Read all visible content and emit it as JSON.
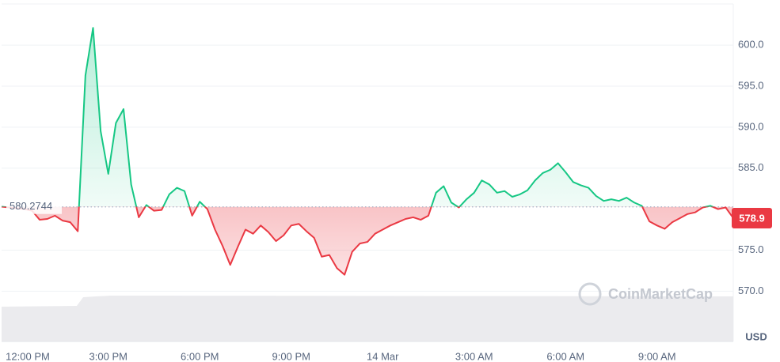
{
  "chart_data": {
    "type": "line",
    "categories": [
      null,
      null,
      "12:00 PM",
      null,
      null,
      null,
      null,
      null,
      null,
      null,
      null,
      null,
      null,
      null,
      "3:00 PM",
      null,
      null,
      null,
      null,
      null,
      null,
      null,
      null,
      null,
      null,
      null,
      "6:00 PM",
      null,
      null,
      null,
      null,
      null,
      null,
      null,
      null,
      null,
      null,
      null,
      "9:00 PM",
      null,
      null,
      null,
      null,
      null,
      null,
      null,
      null,
      null,
      null,
      null,
      "14 Mar",
      null,
      null,
      null,
      null,
      null,
      null,
      null,
      null,
      null,
      null,
      null,
      "3:00 AM",
      null,
      null,
      null,
      null,
      null,
      null,
      null,
      null,
      null,
      null,
      null,
      "6:00 AM",
      null,
      null,
      null,
      null,
      null,
      null,
      null,
      null,
      null,
      null,
      null,
      "9:00 AM",
      null,
      null,
      null,
      null,
      null,
      null,
      null,
      null,
      null,
      null
    ],
    "values": [
      580.3,
      580.2,
      580.1,
      580.0,
      579.8,
      578.7,
      578.8,
      579.2,
      578.6,
      578.4,
      577.3,
      596.3,
      602.1,
      589.5,
      584.3,
      590.5,
      592.2,
      583.0,
      579.0,
      580.5,
      579.8,
      579.9,
      581.8,
      582.6,
      582.2,
      579.2,
      580.9,
      580.0,
      577.5,
      575.5,
      573.2,
      575.4,
      577.5,
      577.0,
      578.0,
      577.2,
      576.1,
      576.8,
      578.0,
      578.2,
      577.3,
      576.5,
      574.2,
      574.4,
      572.8,
      572.0,
      574.8,
      575.8,
      576.0,
      577.0,
      577.5,
      578.0,
      578.4,
      578.8,
      579.0,
      578.7,
      579.2,
      582.0,
      582.8,
      580.8,
      580.2,
      581.2,
      582.0,
      583.5,
      583.0,
      582.0,
      582.2,
      581.5,
      581.8,
      582.3,
      583.5,
      584.4,
      584.8,
      585.6,
      584.5,
      583.3,
      582.9,
      582.6,
      581.6,
      581.0,
      581.2,
      581.0,
      581.4,
      580.8,
      580.4,
      578.5,
      578.0,
      577.6,
      578.4,
      578.9,
      579.4,
      579.6,
      580.2,
      580.4,
      580.0,
      580.2,
      578.9
    ],
    "color_up": "#16c784",
    "color_down": "#ea3943",
    "reference_price": 580.2744,
    "current_price": 578.9,
    "ylim": [
      565.5,
      605.5
    ],
    "yticks": [
      {
        "value": 570,
        "label": "570.0"
      },
      {
        "value": 575,
        "label": "575.0"
      },
      {
        "value": 585,
        "label": "585.0"
      },
      {
        "value": 590,
        "label": "590.0"
      },
      {
        "value": 595,
        "label": "595.0"
      },
      {
        "value": 600,
        "label": "600.0"
      }
    ],
    "y_axis_label": "USD",
    "watermark": "CoinMarketCap",
    "grid": true
  }
}
